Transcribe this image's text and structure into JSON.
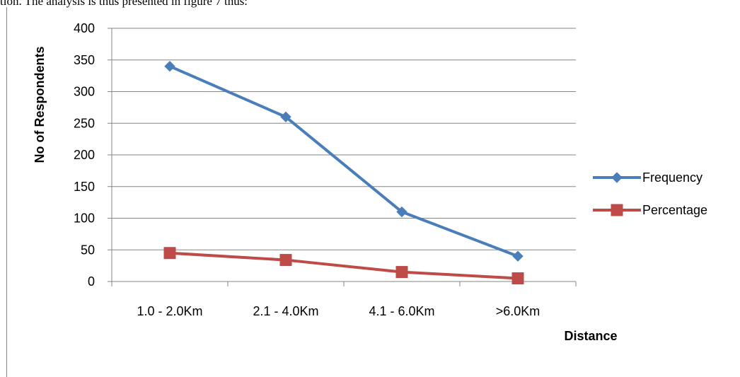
{
  "caption": "tion. The analysis is thus presented in figure 7 thus:",
  "chart_data": {
    "type": "line",
    "categories": [
      "1.0 - 2.0Km",
      "2.1 - 4.0Km",
      "4.1 - 6.0Km",
      ">6.0Km"
    ],
    "series": [
      {
        "name": "Frequency",
        "values": [
          340,
          260,
          110,
          40
        ],
        "color": "#4a7ebb",
        "marker": "diamond"
      },
      {
        "name": "Percentage",
        "values": [
          45,
          34,
          15,
          5
        ],
        "color": "#be4b48",
        "marker": "square"
      }
    ],
    "title": "",
    "xlabel": "Distance",
    "ylabel": "No of Respondents",
    "ylim": [
      0,
      400
    ],
    "yticks": [
      0,
      50,
      100,
      150,
      200,
      250,
      300,
      350,
      400
    ],
    "grid": true,
    "legend": "right"
  }
}
